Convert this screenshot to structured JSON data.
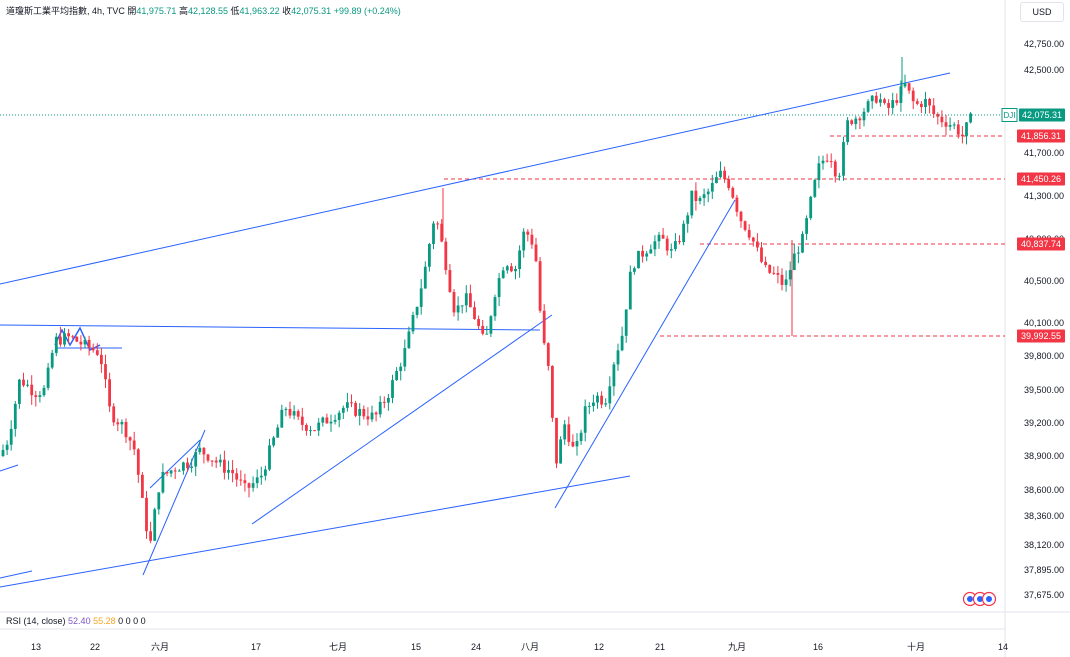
{
  "header": {
    "title": "道瓊斯工業平均指數, 4h, TVC",
    "open_label": "開",
    "open": "41,975.71",
    "high_label": "高",
    "high": "42,128.55",
    "low_label": "低",
    "low": "41,963.22",
    "close_label": "收",
    "close": "42,075.31",
    "change": "+99.89 (+0.24%)"
  },
  "currency": "USD",
  "rsi": {
    "label": "RSI (14, close)",
    "value1": "52.40",
    "value2": "55.28",
    "zeros": "0 0 0 0"
  },
  "colors": {
    "up": "#089981",
    "down": "#f23645",
    "trend": "#2962ff",
    "level": "#f23645"
  },
  "chart_data": {
    "type": "candlestick",
    "symbol": "DJI",
    "x_ticks": [
      "13",
      "22",
      "六月",
      "17",
      "七月",
      "15",
      "24",
      "八月",
      "12",
      "21",
      "九月",
      "16",
      "十月",
      "14"
    ],
    "y_ticks": [
      "42,750.00",
      "42,500.00",
      "41,700.00",
      "41,300.00",
      "40,900.00",
      "40,500.00",
      "40,100.00",
      "39,800.00",
      "39,500.00",
      "39,200.00",
      "38,900.00",
      "38,600.00",
      "38,360.00",
      "38,120.00",
      "37,895.00",
      "37,675.00"
    ],
    "last_price": {
      "label": "DJI",
      "value": "42,075.31"
    },
    "levels": [
      "41,856.31",
      "41,450.26",
      "40,837.74",
      "39,992.55"
    ],
    "close_path": [
      [
        0,
        38900
      ],
      [
        8,
        39050
      ],
      [
        20,
        39600
      ],
      [
        35,
        39480
      ],
      [
        45,
        39500
      ],
      [
        55,
        39950
      ],
      [
        70,
        39980
      ],
      [
        85,
        39900
      ],
      [
        100,
        39830
      ],
      [
        110,
        39300
      ],
      [
        125,
        39150
      ],
      [
        135,
        38950
      ],
      [
        142,
        38500
      ],
      [
        150,
        38100
      ],
      [
        160,
        38700
      ],
      [
        175,
        38800
      ],
      [
        190,
        38850
      ],
      [
        200,
        38950
      ],
      [
        210,
        38900
      ],
      [
        220,
        38820
      ],
      [
        232,
        38760
      ],
      [
        245,
        38600
      ],
      [
        260,
        38700
      ],
      [
        270,
        38950
      ],
      [
        285,
        39350
      ],
      [
        300,
        39200
      ],
      [
        315,
        39150
      ],
      [
        330,
        39250
      ],
      [
        345,
        39350
      ],
      [
        360,
        39300
      ],
      [
        375,
        39250
      ],
      [
        390,
        39500
      ],
      [
        405,
        39850
      ],
      [
        415,
        40200
      ],
      [
        425,
        40600
      ],
      [
        435,
        41150
      ],
      [
        445,
        40700
      ],
      [
        455,
        40200
      ],
      [
        465,
        40350
      ],
      [
        475,
        40150
      ],
      [
        485,
        39900
      ],
      [
        495,
        40400
      ],
      [
        505,
        40700
      ],
      [
        515,
        40600
      ],
      [
        525,
        41000
      ],
      [
        535,
        40800
      ],
      [
        542,
        40000
      ],
      [
        550,
        39600
      ],
      [
        555,
        38800
      ],
      [
        565,
        39200
      ],
      [
        575,
        38900
      ],
      [
        585,
        39300
      ],
      [
        595,
        39450
      ],
      [
        605,
        39400
      ],
      [
        615,
        39800
      ],
      [
        622,
        40000
      ],
      [
        632,
        40650
      ],
      [
        642,
        40750
      ],
      [
        652,
        40850
      ],
      [
        662,
        40900
      ],
      [
        672,
        40750
      ],
      [
        682,
        40950
      ],
      [
        692,
        41300
      ],
      [
        700,
        41250
      ],
      [
        710,
        41350
      ],
      [
        720,
        41500
      ],
      [
        730,
        41400
      ],
      [
        740,
        41100
      ],
      [
        750,
        40950
      ],
      [
        758,
        40750
      ],
      [
        765,
        40600
      ],
      [
        775,
        40550
      ],
      [
        785,
        40450
      ],
      [
        793,
        40700
      ],
      [
        803,
        40900
      ],
      [
        812,
        41300
      ],
      [
        820,
        41600
      ],
      [
        830,
        41700
      ],
      [
        838,
        41450
      ],
      [
        848,
        42000
      ],
      [
        858,
        42050
      ],
      [
        868,
        42150
      ],
      [
        878,
        42250
      ],
      [
        886,
        42100
      ],
      [
        895,
        42200
      ],
      [
        905,
        42350
      ],
      [
        915,
        42150
      ],
      [
        925,
        42200
      ],
      [
        935,
        42050
      ],
      [
        945,
        42000
      ],
      [
        955,
        41950
      ],
      [
        963,
        41850
      ],
      [
        972,
        42075
      ]
    ]
  }
}
